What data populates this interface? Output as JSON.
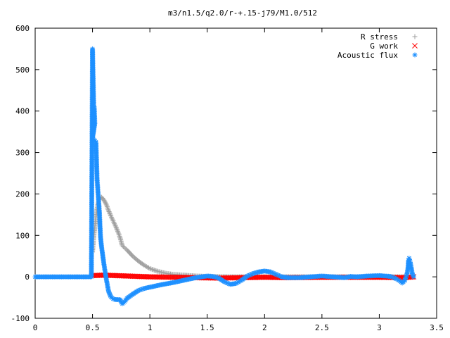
{
  "chart_data": {
    "type": "scatter",
    "title": "m3/n1.5/q2.0/r-+.15-j79/M1.0/512",
    "xlabel": "",
    "ylabel": "",
    "xlim": [
      0,
      3.5
    ],
    "ylim": [
      -100,
      600
    ],
    "xticks": [
      "0",
      "0.5",
      "1",
      "1.5",
      "2",
      "2.5",
      "3",
      "3.5"
    ],
    "yticks": [
      "-100",
      "0",
      "100",
      "200",
      "300",
      "400",
      "500",
      "600"
    ],
    "grid": false,
    "legend_position": "top-right",
    "series": [
      {
        "name": "R stress",
        "marker": "plus",
        "color": "#a0a0a0",
        "points": [
          [
            0.5,
            60
          ],
          [
            0.51,
            95
          ],
          [
            0.52,
            120
          ],
          [
            0.53,
            145
          ],
          [
            0.54,
            165
          ],
          [
            0.55,
            180
          ],
          [
            0.56,
            190
          ],
          [
            0.58,
            192
          ],
          [
            0.6,
            185
          ],
          [
            0.62,
            175
          ],
          [
            0.64,
            160
          ],
          [
            0.66,
            147
          ],
          [
            0.68,
            135
          ],
          [
            0.7,
            123
          ],
          [
            0.72,
            110
          ],
          [
            0.74,
            95
          ],
          [
            0.76,
            75
          ],
          [
            0.78,
            70
          ],
          [
            0.8,
            65
          ],
          [
            0.85,
            50
          ],
          [
            0.9,
            38
          ],
          [
            0.95,
            28
          ],
          [
            1.0,
            20
          ],
          [
            1.05,
            15
          ],
          [
            1.1,
            11
          ],
          [
            1.15,
            8
          ],
          [
            1.2,
            6
          ],
          [
            1.3,
            4
          ],
          [
            1.4,
            2
          ],
          [
            1.5,
            1
          ],
          [
            1.7,
            0
          ],
          [
            2.0,
            0
          ],
          [
            2.5,
            0
          ],
          [
            3.0,
            0
          ],
          [
            3.2,
            0
          ],
          [
            3.3,
            0
          ]
        ]
      },
      {
        "name": "G work",
        "marker": "cross",
        "color": "#ff0000",
        "points": [
          [
            0.5,
            3
          ],
          [
            0.6,
            4
          ],
          [
            0.7,
            3
          ],
          [
            0.8,
            2
          ],
          [
            0.9,
            1
          ],
          [
            1.0,
            0
          ],
          [
            1.2,
            -1
          ],
          [
            1.4,
            -2
          ],
          [
            1.6,
            -3
          ],
          [
            1.8,
            -2
          ],
          [
            2.0,
            -1
          ],
          [
            2.2,
            -2
          ],
          [
            2.5,
            -1
          ],
          [
            2.8,
            -1
          ],
          [
            3.0,
            -1
          ],
          [
            3.2,
            -2
          ],
          [
            3.3,
            0
          ]
        ]
      },
      {
        "name": "Acoustic flux",
        "marker": "star",
        "color": "#1e90ff",
        "points": [
          [
            0.0,
            0
          ],
          [
            0.1,
            0
          ],
          [
            0.2,
            0
          ],
          [
            0.3,
            0
          ],
          [
            0.4,
            0
          ],
          [
            0.49,
            0
          ],
          [
            0.5,
            550
          ],
          [
            0.51,
            415
          ],
          [
            0.515,
            410
          ],
          [
            0.52,
            370
          ],
          [
            0.5,
            335
          ],
          [
            0.53,
            325
          ],
          [
            0.535,
            280
          ],
          [
            0.54,
            235
          ],
          [
            0.55,
            195
          ],
          [
            0.56,
            158
          ],
          [
            0.565,
            125
          ],
          [
            0.57,
            95
          ],
          [
            0.58,
            70
          ],
          [
            0.59,
            50
          ],
          [
            0.6,
            30
          ],
          [
            0.61,
            12
          ],
          [
            0.62,
            -5
          ],
          [
            0.63,
            -20
          ],
          [
            0.64,
            -35
          ],
          [
            0.66,
            -48
          ],
          [
            0.68,
            -53
          ],
          [
            0.7,
            -55
          ],
          [
            0.72,
            -55
          ],
          [
            0.74,
            -55
          ],
          [
            0.76,
            -65
          ],
          [
            0.78,
            -60
          ],
          [
            0.8,
            -52
          ],
          [
            0.85,
            -42
          ],
          [
            0.9,
            -33
          ],
          [
            0.95,
            -28
          ],
          [
            1.0,
            -25
          ],
          [
            1.1,
            -19
          ],
          [
            1.2,
            -14
          ],
          [
            1.3,
            -8
          ],
          [
            1.4,
            -2
          ],
          [
            1.5,
            2
          ],
          [
            1.55,
            1
          ],
          [
            1.6,
            -3
          ],
          [
            1.65,
            -12
          ],
          [
            1.7,
            -18
          ],
          [
            1.75,
            -16
          ],
          [
            1.8,
            -8
          ],
          [
            1.85,
            2
          ],
          [
            1.9,
            8
          ],
          [
            1.95,
            12
          ],
          [
            2.0,
            14
          ],
          [
            2.05,
            12
          ],
          [
            2.1,
            6
          ],
          [
            2.15,
            0
          ],
          [
            2.2,
            -2
          ],
          [
            2.3,
            -2
          ],
          [
            2.4,
            0
          ],
          [
            2.5,
            2
          ],
          [
            2.6,
            0
          ],
          [
            2.7,
            -2
          ],
          [
            2.75,
            1
          ],
          [
            2.8,
            0
          ],
          [
            2.9,
            2
          ],
          [
            3.0,
            3
          ],
          [
            3.1,
            1
          ],
          [
            3.15,
            -5
          ],
          [
            3.18,
            -10
          ],
          [
            3.2,
            -15
          ],
          [
            3.22,
            -10
          ],
          [
            3.24,
            5
          ],
          [
            3.25,
            20
          ],
          [
            3.255,
            40
          ],
          [
            3.26,
            45
          ],
          [
            3.27,
            35
          ],
          [
            3.28,
            20
          ],
          [
            3.29,
            5
          ],
          [
            3.3,
            0
          ]
        ]
      }
    ]
  }
}
